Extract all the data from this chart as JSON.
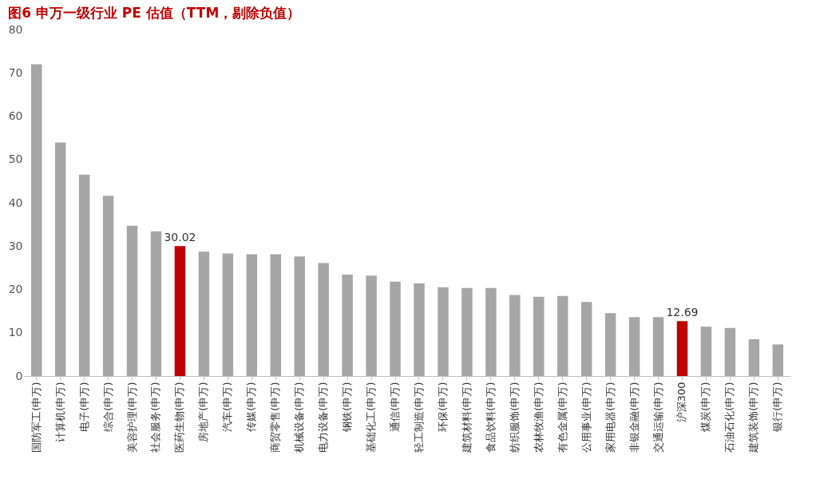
{
  "chart_data": {
    "type": "bar",
    "title": "图6  申万一级行业 PE 估值（TTM，剔除负值）",
    "categories": [
      "国防军工(申万)",
      "计算机(申万)",
      "电子(申万)",
      "综合(申万)",
      "美容护理(申万)",
      "社会服务(申万)",
      "医药生物(申万)",
      "房地产(申万)",
      "汽车(申万)",
      "传媒(申万)",
      "商贸零售(申万)",
      "机械设备(申万)",
      "电力设备(申万)",
      "钢铁(申万)",
      "基础化工(申万)",
      "通信(申万)",
      "轻工制造(申万)",
      "环保(申万)",
      "建筑材料(申万)",
      "食品饮料(申万)",
      "纺织服饰(申万)",
      "农林牧渔(申万)",
      "有色金属(申万)",
      "公用事业(申万)",
      "家用电器(申万)",
      "非银金融(申万)",
      "交通运输(申万)",
      "沪深300",
      "煤炭(申万)",
      "石油石化(申万)",
      "建筑装饰(申万)",
      "银行(申万)"
    ],
    "values": [
      72,
      53.9,
      46.5,
      41.6,
      34.7,
      33.4,
      30.02,
      28.7,
      28.3,
      28.1,
      28.1,
      27.6,
      26.1,
      23.4,
      23.2,
      21.8,
      21.4,
      20.5,
      20.3,
      20.3,
      18.7,
      18.3,
      18.5,
      17.1,
      14.5,
      13.6,
      13.6,
      12.69,
      11.4,
      11.1,
      8.5,
      7.3
    ],
    "colors": [
      "#a6a6a6",
      "#a6a6a6",
      "#a6a6a6",
      "#a6a6a6",
      "#a6a6a6",
      "#a6a6a6",
      "#c00000",
      "#a6a6a6",
      "#a6a6a6",
      "#a6a6a6",
      "#a6a6a6",
      "#a6a6a6",
      "#a6a6a6",
      "#a6a6a6",
      "#a6a6a6",
      "#a6a6a6",
      "#a6a6a6",
      "#a6a6a6",
      "#a6a6a6",
      "#a6a6a6",
      "#a6a6a6",
      "#a6a6a6",
      "#a6a6a6",
      "#a6a6a6",
      "#a6a6a6",
      "#a6a6a6",
      "#a6a6a6",
      "#c00000",
      "#a6a6a6",
      "#a6a6a6",
      "#a6a6a6",
      "#a6a6a6"
    ],
    "value_labels": [
      null,
      null,
      null,
      null,
      null,
      null,
      "30.02",
      null,
      null,
      null,
      null,
      null,
      null,
      null,
      null,
      null,
      null,
      null,
      null,
      null,
      null,
      null,
      null,
      null,
      null,
      null,
      null,
      "12.69",
      null,
      null,
      null,
      null
    ],
    "ylim": [
      0,
      80
    ],
    "yticks": [
      0,
      10,
      20,
      30,
      40,
      50,
      60,
      70,
      80
    ],
    "grid": false
  }
}
